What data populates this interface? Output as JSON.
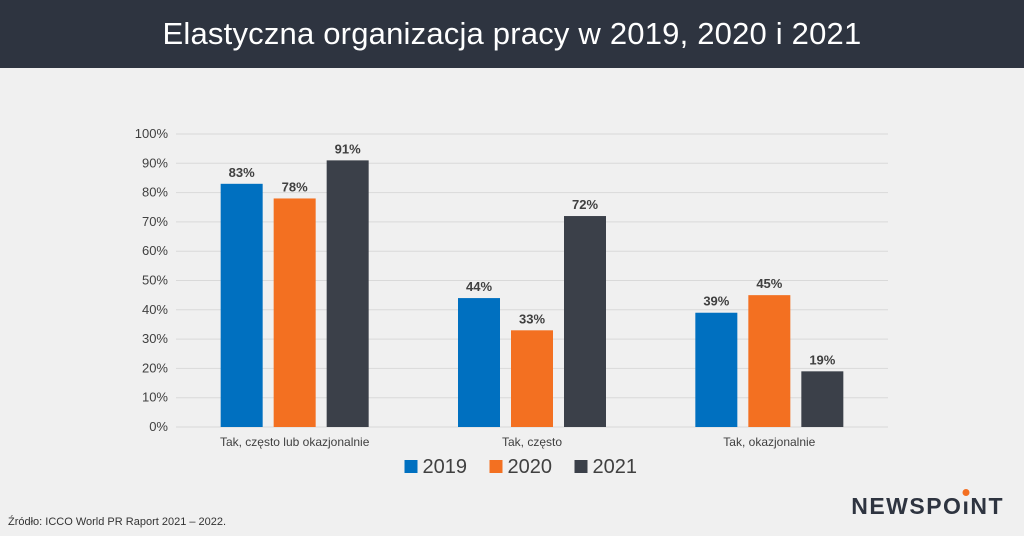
{
  "header": {
    "title": "Elastyczna organizacja pracy w 2019, 2020 i 2021"
  },
  "source_note": "Źródło: ICCO World PR Raport 2021 – 2022.",
  "logo": {
    "text_before": "NEWSPO",
    "text_i": "ı",
    "text_after": "NT"
  },
  "colors": {
    "2019": "#0070c0",
    "2020": "#f37021",
    "2021": "#3b4049",
    "grid": "#d9d9d9"
  },
  "chart_data": {
    "type": "bar",
    "categories": [
      "Tak, często lub okazjonalnie",
      "Tak, często",
      "Tak, okazjonalnie"
    ],
    "series": [
      {
        "name": "2019",
        "values": [
          83,
          44,
          39
        ]
      },
      {
        "name": "2020",
        "values": [
          78,
          33,
          45
        ]
      },
      {
        "name": "2021",
        "values": [
          91,
          72,
          19
        ]
      }
    ],
    "value_labels": [
      [
        "83%",
        "44%",
        "39%"
      ],
      [
        "78%",
        "33%",
        "45%"
      ],
      [
        "91%",
        "72%",
        "19%"
      ]
    ],
    "yticks": [
      "0%",
      "10%",
      "20%",
      "30%",
      "40%",
      "50%",
      "60%",
      "70%",
      "80%",
      "90%",
      "100%"
    ],
    "ylim": [
      0,
      100
    ],
    "grid": true,
    "legend_position": "bottom"
  }
}
